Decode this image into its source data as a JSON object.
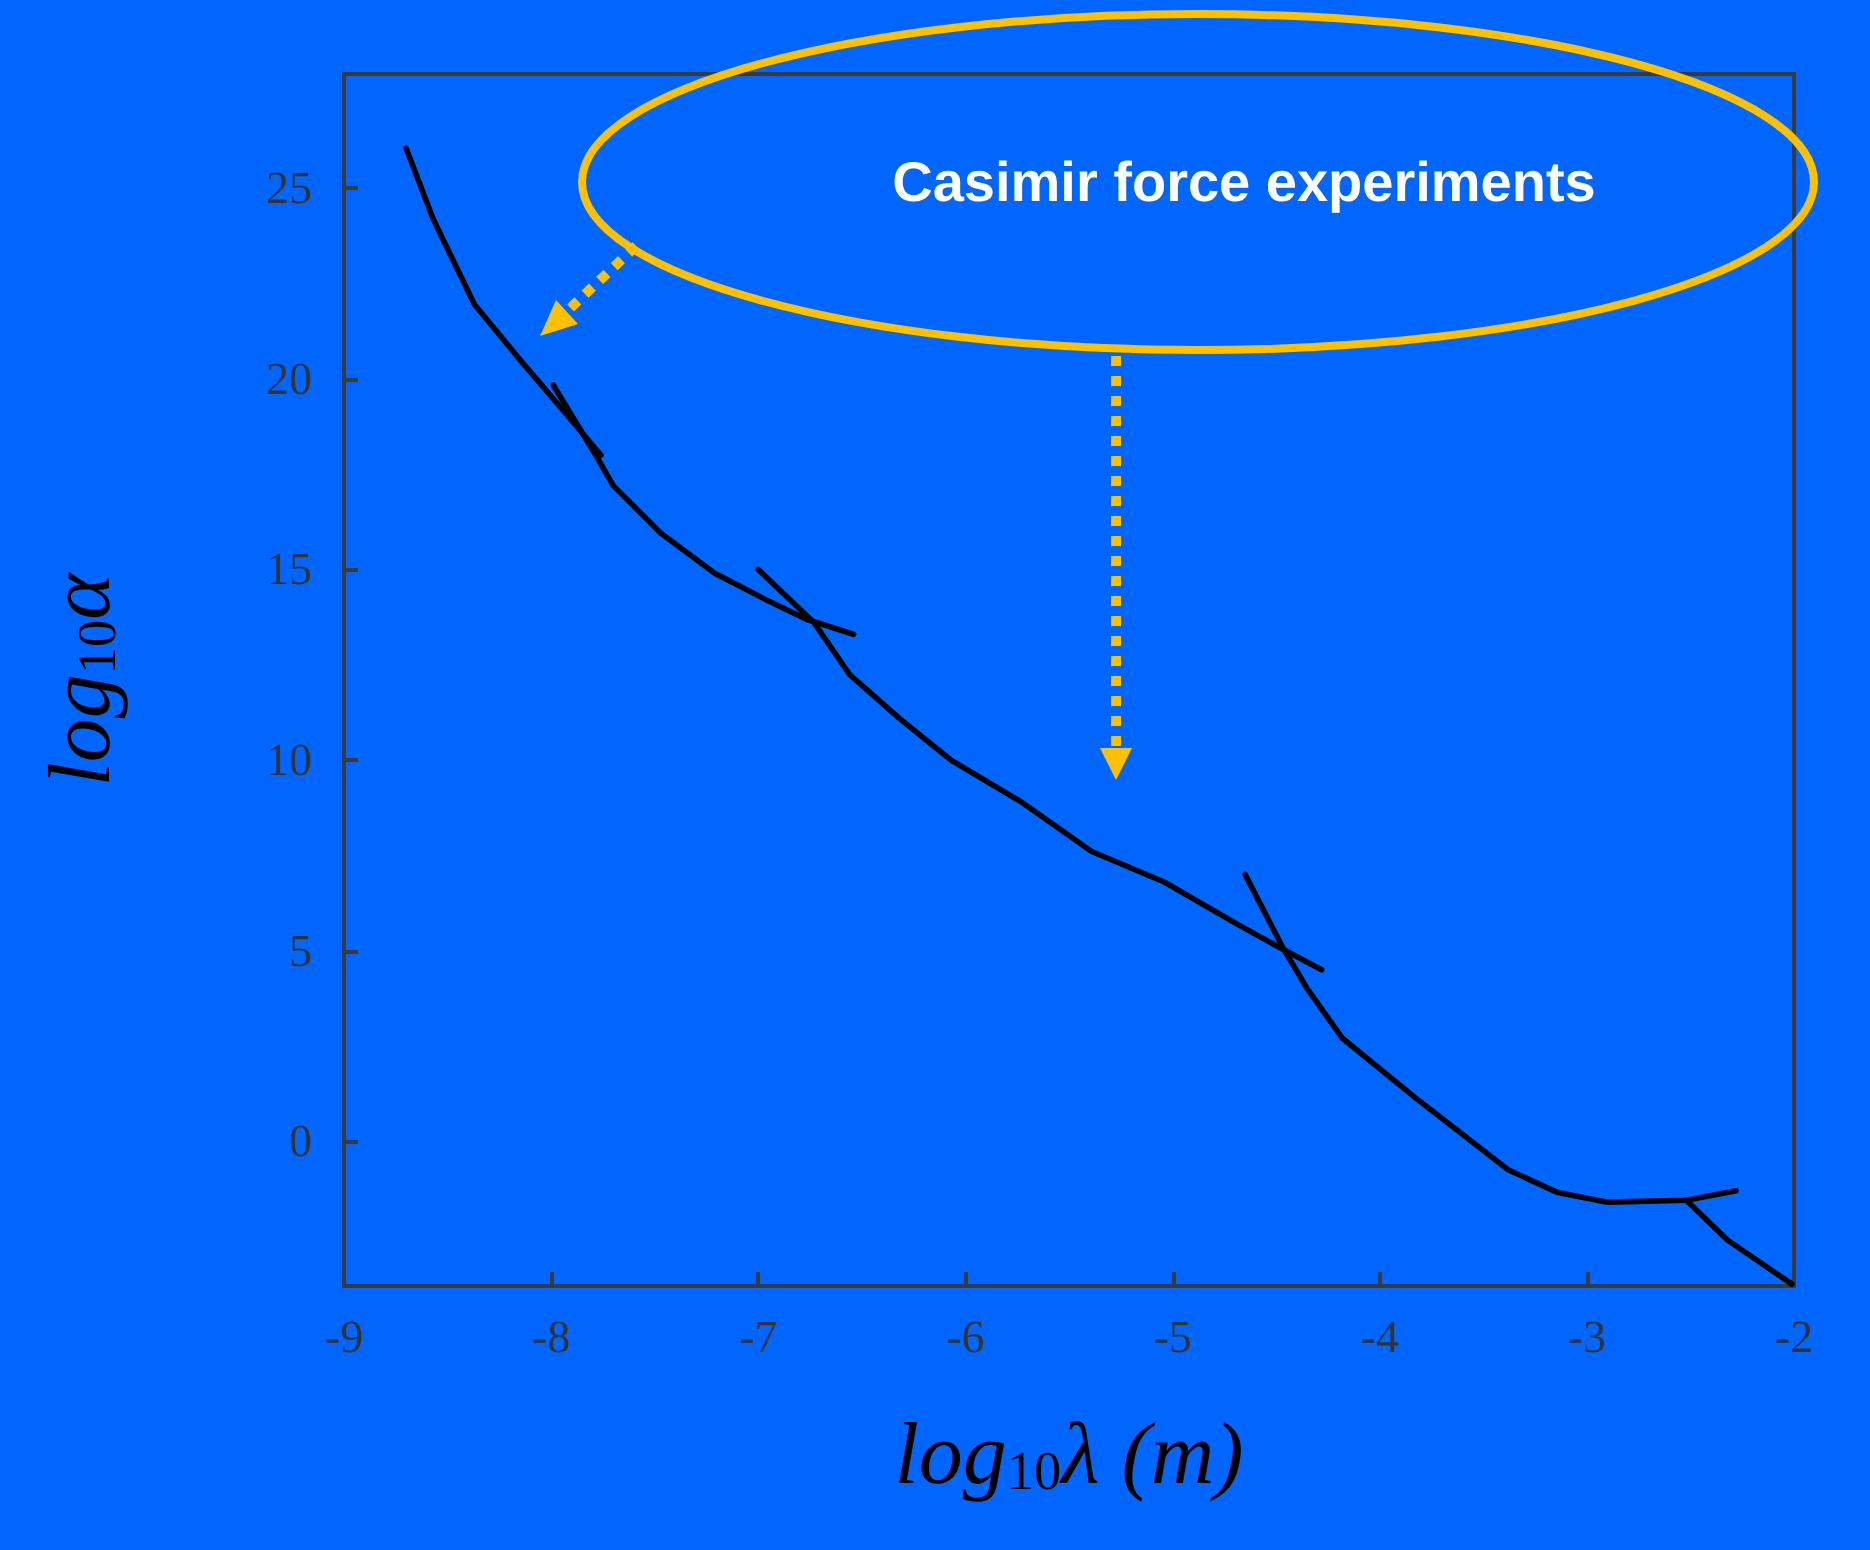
{
  "chart_data": {
    "type": "line",
    "xlabel": "log$_{10}$λ (m)",
    "ylabel": "log$_{10}$α",
    "annotations": [
      "Casimir force experiments"
    ],
    "xlim": [
      -9,
      -2
    ],
    "ylim": [
      -3.8,
      28
    ],
    "xticks": [
      -9,
      -8,
      -7,
      -6,
      -5,
      -4,
      -3,
      -2
    ],
    "yticks": [
      0,
      5,
      10,
      15,
      20,
      25
    ],
    "grid": false,
    "marker": "none",
    "line_style": "solid",
    "series": [
      {
        "color": "#000000",
        "x": [
          -8.7,
          -8.57,
          -8.37,
          -8.15,
          -7.93,
          -7.76
        ],
        "values": [
          26.05,
          24.2,
          21.95,
          20.5,
          19.1,
          18.0
        ]
      },
      {
        "color": "#000000",
        "x": [
          -7.99,
          -7.79,
          -7.7,
          -7.47,
          -7.21,
          -6.96,
          -6.77,
          -6.54
        ],
        "values": [
          19.84,
          18.05,
          17.2,
          15.95,
          14.9,
          14.2,
          13.7,
          13.3
        ]
      },
      {
        "color": "#000000",
        "x": [
          -7.0,
          -6.73,
          -6.56,
          -6.32,
          -6.07,
          -5.73,
          -5.39,
          -5.04,
          -4.69,
          -4.49,
          -4.28
        ],
        "values": [
          15.0,
          13.6,
          12.25,
          11.1,
          10.0,
          8.9,
          7.6,
          6.8,
          5.7,
          5.1,
          4.5
        ]
      },
      {
        "color": "#000000",
        "x": [
          -4.65,
          -4.47,
          -4.35,
          -4.18,
          -3.83,
          -3.38,
          -3.14,
          -2.9,
          -2.52,
          -2.28
        ],
        "values": [
          7.0,
          5.1,
          4.0,
          2.7,
          1.15,
          -0.75,
          -1.35,
          -1.6,
          -1.55,
          -1.3
        ]
      },
      {
        "color": "#000000",
        "x": [
          -2.52,
          -2.32,
          -2.01
        ],
        "values": [
          -1.55,
          -2.6,
          -3.75
        ]
      }
    ]
  }
}
